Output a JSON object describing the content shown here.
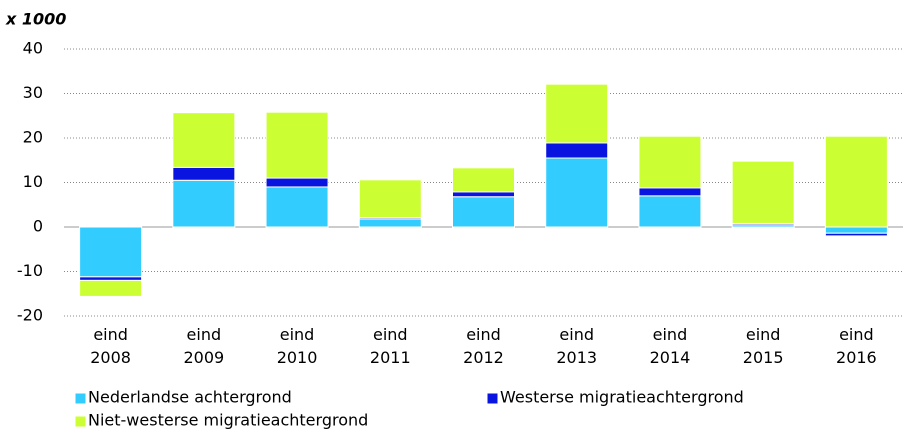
{
  "chart_data": {
    "type": "stacked-bar",
    "title": "x 1000",
    "categories": [
      "eind 2008",
      "eind 2009",
      "eind 2010",
      "eind 2011",
      "eind 2012",
      "eind 2013",
      "eind 2014",
      "eind 2015",
      "eind 2016"
    ],
    "series": [
      {
        "name": "Nederlandse achtergrond",
        "color": "#33ccff",
        "values": [
          -11.2,
          10.5,
          9.0,
          1.8,
          6.8,
          15.5,
          7.0,
          0.5,
          -1.4
        ]
      },
      {
        "name": "Westerse migratieachtergrond",
        "color": "#0a14e0",
        "values": [
          -0.8,
          2.9,
          2.0,
          0.3,
          1.1,
          3.4,
          1.8,
          0.3,
          -0.6
        ]
      },
      {
        "name": "Niet-westerse migratieachtergrond",
        "color": "#ccff33",
        "values": [
          -3.6,
          12.3,
          14.8,
          8.5,
          5.4,
          13.2,
          11.6,
          14.0,
          20.4
        ]
      }
    ],
    "ylim": [
      -20,
      40
    ],
    "yticks": [
      -20,
      -10,
      0,
      10,
      20,
      30,
      40
    ],
    "grid": true
  }
}
